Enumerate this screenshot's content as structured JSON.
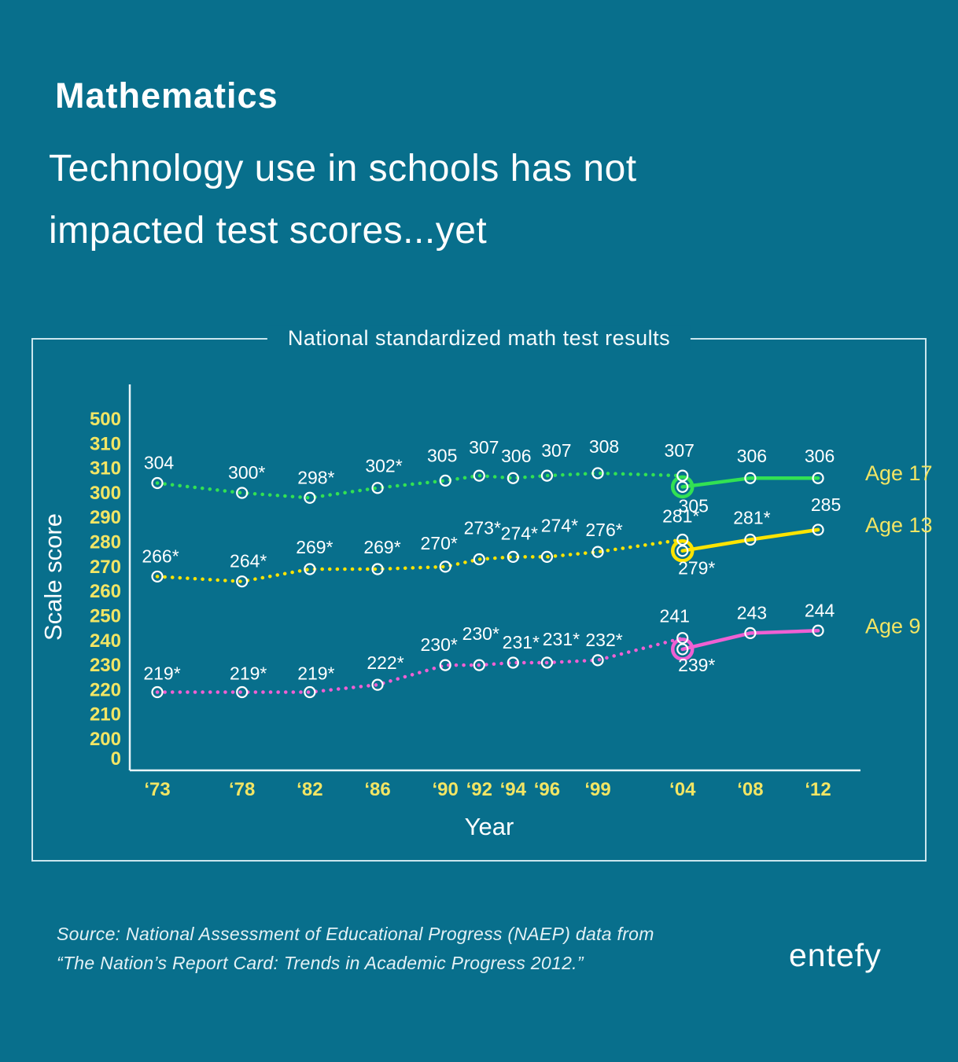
{
  "page": {
    "kicker": "Mathematics",
    "headline_line1": "Technology use in schools has not",
    "headline_line2": "impacted test scores...yet",
    "source_line1": "Source: National Assessment of Educational Progress (NAEP) data from",
    "source_line2": "“The Nation’s Report Card: Trends in Academic Progress 2012.”",
    "brand": "entefy"
  },
  "colors": {
    "background": "#086F8C",
    "panel_border": "#CBE6EE",
    "axis": "#E9F5F8",
    "tick_yellow": "#F2E564",
    "label_white": "#FFFFFF",
    "age17_green": "#32E153",
    "age13_yellow": "#FFE400",
    "age9_pink": "#EF60D3"
  },
  "chart_data": {
    "type": "line",
    "title": "National standardized math test results",
    "xlabel": "Year",
    "ylabel": "Scale score",
    "grid": false,
    "legend_position": "right",
    "y_axis_note": "broken scale: 0, 200-310, 500 (310 appears twice as printed)",
    "y_tick_labels": [
      "500",
      "310",
      "310",
      "300",
      "290",
      "280",
      "270",
      "260",
      "250",
      "240",
      "230",
      "220",
      "210",
      "200",
      "0"
    ],
    "x_ticks": [
      {
        "year": 1973,
        "label": "‘73"
      },
      {
        "year": 1978,
        "label": "‘78"
      },
      {
        "year": 1982,
        "label": "‘82"
      },
      {
        "year": 1986,
        "label": "‘86"
      },
      {
        "year": 1990,
        "label": "‘90"
      },
      {
        "year": 1992,
        "label": "‘92"
      },
      {
        "year": 1994,
        "label": "‘94"
      },
      {
        "year": 1996,
        "label": "‘96"
      },
      {
        "year": 1999,
        "label": "‘99"
      },
      {
        "year": 2004,
        "label": "‘04"
      },
      {
        "year": 2008,
        "label": "‘08"
      },
      {
        "year": 2012,
        "label": "‘12"
      }
    ],
    "series": [
      {
        "name": "Age 17",
        "color_key": "age17_green",
        "original_format": {
          "style": "dotted",
          "years": [
            1973,
            1978,
            1982,
            1986,
            1990,
            1992,
            1994,
            1996,
            1999,
            2004
          ],
          "scores": [
            304,
            300,
            298,
            302,
            305,
            307,
            306,
            307,
            308,
            307
          ],
          "labels": [
            "304",
            "300*",
            "298*",
            "302*",
            "305",
            "307",
            "306",
            "307",
            "308",
            "307"
          ],
          "label_offsets": [
            [
              2,
              -18
            ],
            [
              6,
              -18
            ],
            [
              8,
              -18
            ],
            [
              8,
              -20
            ],
            [
              -4,
              -24
            ],
            [
              6,
              -28
            ],
            [
              4,
              -20
            ],
            [
              12,
              -24
            ],
            [
              8,
              -26
            ],
            [
              -4,
              -24
            ]
          ]
        },
        "revised_format": {
          "style": "solid",
          "years": [
            2004,
            2008,
            2012
          ],
          "scores": [
            305,
            306,
            306
          ],
          "labels": [
            "305",
            "306",
            "306"
          ],
          "label_offsets": [
            [
              14,
              32
            ],
            [
              2,
              -20
            ],
            [
              2,
              -20
            ]
          ]
        }
      },
      {
        "name": "Age 13",
        "color_key": "age13_yellow",
        "original_format": {
          "style": "dotted",
          "years": [
            1973,
            1978,
            1982,
            1986,
            1990,
            1992,
            1994,
            1996,
            1999,
            2004
          ],
          "scores": [
            266,
            264,
            269,
            269,
            270,
            273,
            274,
            274,
            276,
            281
          ],
          "labels": [
            "266*",
            "264*",
            "269*",
            "269*",
            "270*",
            "273*",
            "274*",
            "274*",
            "276*",
            "281*"
          ],
          "label_offsets": [
            [
              4,
              -18
            ],
            [
              8,
              -18
            ],
            [
              6,
              -20
            ],
            [
              6,
              -20
            ],
            [
              -8,
              -22
            ],
            [
              4,
              -32
            ],
            [
              8,
              -22
            ],
            [
              16,
              -32
            ],
            [
              8,
              -20
            ],
            [
              -2,
              -22
            ]
          ]
        },
        "revised_format": {
          "style": "solid",
          "years": [
            2004,
            2008,
            2012
          ],
          "scores": [
            279,
            281,
            285
          ],
          "labels": [
            "279*",
            "281*",
            "285"
          ],
          "label_offsets": [
            [
              18,
              30
            ],
            [
              2,
              -20
            ],
            [
              10,
              -24
            ]
          ]
        }
      },
      {
        "name": "Age 9",
        "color_key": "age9_pink",
        "original_format": {
          "style": "dotted",
          "years": [
            1973,
            1978,
            1982,
            1986,
            1990,
            1992,
            1994,
            1996,
            1999,
            2004
          ],
          "scores": [
            219,
            219,
            219,
            222,
            230,
            230,
            231,
            231,
            232,
            241
          ],
          "labels": [
            "219*",
            "219*",
            "219*",
            "222*",
            "230*",
            "230*",
            "231*",
            "231*",
            "232*",
            "241"
          ],
          "label_offsets": [
            [
              6,
              -16
            ],
            [
              8,
              -16
            ],
            [
              8,
              -16
            ],
            [
              10,
              -20
            ],
            [
              -8,
              -18
            ],
            [
              2,
              -32
            ],
            [
              10,
              -18
            ],
            [
              18,
              -22
            ],
            [
              8,
              -18
            ],
            [
              -10,
              -20
            ]
          ]
        },
        "revised_format": {
          "style": "solid",
          "years": [
            2004,
            2008,
            2012
          ],
          "scores": [
            239,
            243,
            244
          ],
          "labels": [
            "239*",
            "243",
            "244"
          ],
          "label_offsets": [
            [
              18,
              28
            ],
            [
              2,
              -18
            ],
            [
              2,
              -18
            ]
          ]
        }
      }
    ]
  }
}
